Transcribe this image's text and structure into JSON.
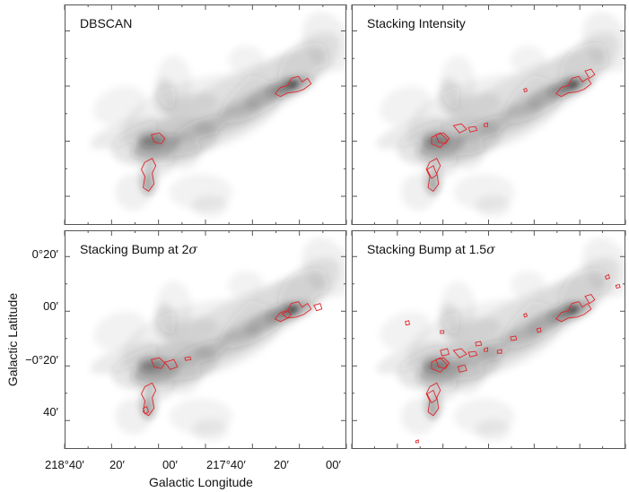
{
  "figure": {
    "panels": [
      {
        "id": "dbscan",
        "title": "DBSCAN"
      },
      {
        "id": "intensity",
        "title": "Stacking Intensity"
      },
      {
        "id": "bump2",
        "title_prefix": "Stacking Bump at 2",
        "title_symbol": "σ"
      },
      {
        "id": "bump15",
        "title_prefix": "Stacking Bump at 1.5",
        "title_symbol": "σ"
      }
    ],
    "xaxis": {
      "label": "Galactic Longitude",
      "ticks": [
        "218°40′",
        "20′",
        "00′",
        "217°40′",
        "20′",
        "00′"
      ]
    },
    "yaxis": {
      "label": "Galactic Latitude",
      "ticks": [
        "0°20′",
        "00′",
        "−0°20′",
        "40′"
      ]
    },
    "colors": {
      "contour": "#e0262b",
      "emission_dark": "#222222",
      "frame": "#555555"
    }
  }
}
